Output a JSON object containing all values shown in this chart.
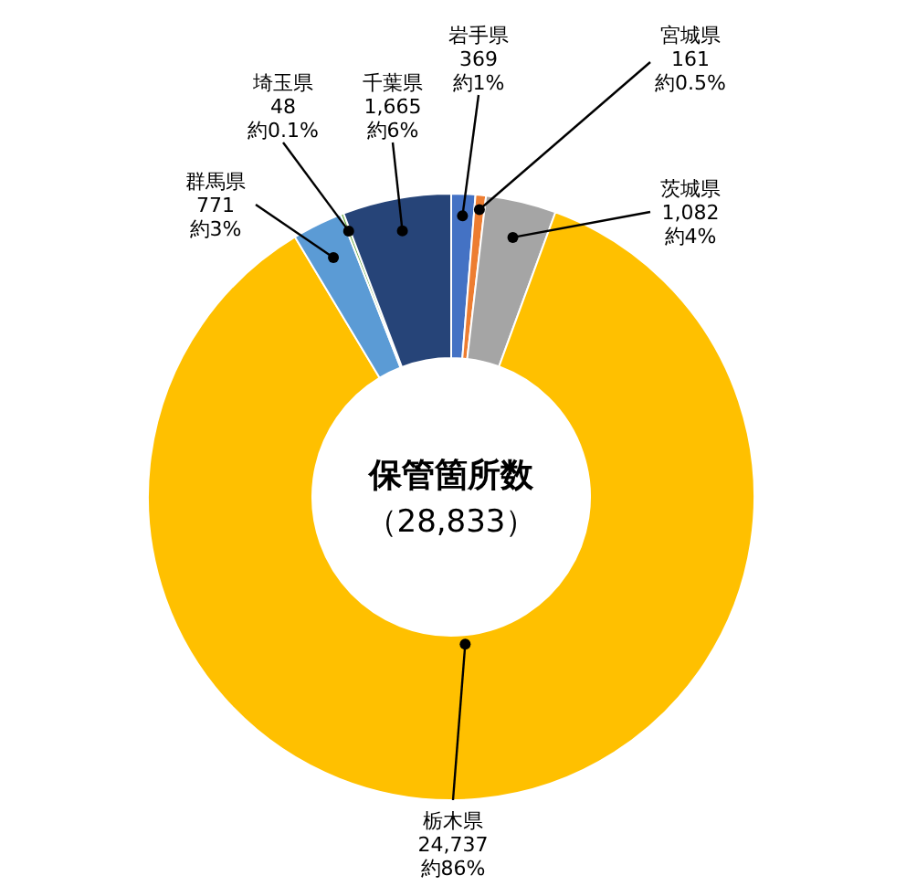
{
  "chart_data": {
    "type": "donut",
    "title": "保管箇所数",
    "subtitle": "（28,833）",
    "categories": [
      "岩手県",
      "宮城県",
      "茨城県",
      "栃木県",
      "群馬県",
      "埼玉県",
      "千葉県"
    ],
    "values": [
      369,
      161,
      1082,
      24737,
      771,
      48,
      1665
    ],
    "colors": [
      "#4472c4",
      "#ed7d31",
      "#a5a5a5",
      "#ffc000",
      "#5b9bd5",
      "#70ad47",
      "#264478"
    ],
    "value_labels": [
      "369",
      "161",
      "1,082",
      "24,737",
      "771",
      "48",
      "1,665"
    ],
    "annotations": [
      "約1%",
      "約0.5%",
      "約4%",
      "約86%",
      "約3%",
      "約0.1%",
      "約6%"
    ]
  }
}
